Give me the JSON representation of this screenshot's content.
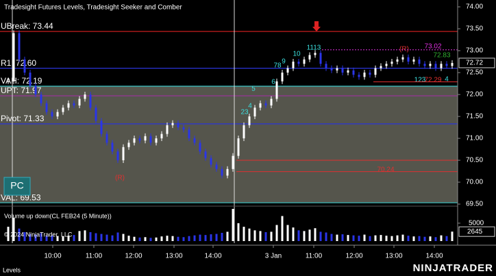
{
  "header": {
    "title": "Tradesight Futures Levels, Tradesight Seeker and Comber"
  },
  "chart_data": {
    "type": "candlestick",
    "closes": [
      72.3,
      73.4,
      72.8,
      72.5,
      72.2,
      72.0,
      71.8,
      71.6,
      71.5,
      71.6,
      71.7,
      71.8,
      71.75,
      71.9,
      72.0,
      71.7,
      71.4,
      71.1,
      70.9,
      70.7,
      70.5,
      70.8,
      70.9,
      71.0,
      70.95,
      71.05,
      70.9,
      71.0,
      71.1,
      71.3,
      71.35,
      71.25,
      71.2,
      71.0,
      70.9,
      70.7,
      70.55,
      70.4,
      70.3,
      70.15,
      70.3,
      70.6,
      71.0,
      71.3,
      71.5,
      71.7,
      71.8,
      71.75,
      71.9,
      72.3,
      72.5,
      72.6,
      72.75,
      72.7,
      72.8,
      72.9,
      72.95,
      72.7,
      72.6,
      72.55,
      72.6,
      72.5,
      72.55,
      72.45,
      72.4,
      72.5,
      72.45,
      72.6,
      72.65,
      72.7,
      72.75,
      72.8,
      72.85,
      72.75,
      72.8,
      72.7,
      72.65,
      72.7,
      72.6,
      72.7,
      72.65,
      72.72
    ],
    "ylim": [
      69.5,
      74
    ],
    "yticks": [
      {
        "value": 74,
        "label": "74.00"
      },
      {
        "value": 73.5,
        "label": "73.50"
      },
      {
        "value": 73,
        "label": "73.00"
      },
      {
        "value": 72.5,
        "label": "72.50"
      },
      {
        "value": 72,
        "label": "72.00"
      },
      {
        "value": 71.5,
        "label": "71.50"
      },
      {
        "value": 71,
        "label": "71.00"
      },
      {
        "value": 70.5,
        "label": "70.50"
      },
      {
        "value": 70,
        "label": "70.00"
      },
      {
        "value": 69.5,
        "label": "69.50"
      }
    ],
    "last_price": 72.72,
    "levels": [
      {
        "label": "UBreak: 73.44",
        "value": 73.44,
        "color": "#c81e1e"
      },
      {
        "label": "R1: 72.60",
        "value": 72.6,
        "color": "#2a35d8"
      },
      {
        "label": "VAH: 72.19",
        "value": 72.19,
        "color": "#3cc8c8"
      },
      {
        "label": "UPT: 71.97",
        "value": 71.97,
        "color": "#a030a0"
      },
      {
        "label": "Pivot: 71.33",
        "value": 71.33,
        "color": "#2a35d8"
      },
      {
        "label": "VAL: 69.53",
        "value": 69.53,
        "color": "#3cc8c8"
      }
    ],
    "x_labels": [
      "10:00",
      "11:00",
      "12:00",
      "13:00",
      "14:00",
      "3 Jan",
      "11:00",
      "12:00",
      "13:00",
      "14:00"
    ],
    "annotations": [
      "(R)",
      "(R)",
      "73.02",
      "72.83",
      "72.29",
      "70.24",
      "5",
      "6",
      "78",
      "9",
      "10",
      "1113",
      "23",
      "4",
      "123",
      "4"
    ],
    "volume": {
      "name": "Volume up down(CL FEB24 (5 Minute))",
      "values": [
        4000,
        6500,
        3500,
        2500,
        2000,
        1800,
        2200,
        1500,
        1600,
        1400,
        1300,
        1500,
        1700,
        2800,
        3000,
        2500,
        2200,
        2000,
        1800,
        1600,
        2400,
        2000,
        1500,
        1200,
        1000,
        1100,
        900,
        1000,
        1300,
        1500,
        1400,
        1200,
        1100,
        1400,
        1600,
        1800,
        1700,
        1900,
        2000,
        2300,
        2600,
        9000,
        5000,
        4000,
        3500,
        3000,
        2800,
        2500,
        2600,
        4500,
        7000,
        4500,
        3800,
        3000,
        2800,
        3200,
        3600,
        2600,
        2400,
        2000,
        1800,
        1900,
        1700,
        1600,
        1500,
        1800,
        1400,
        1600,
        1700,
        1500,
        1400,
        1600,
        1800,
        1500,
        1300,
        1400,
        1200,
        1300,
        1100,
        1600,
        1400,
        2645
      ],
      "ylim": [
        0,
        9000
      ],
      "yticks": [
        5000
      ],
      "last": 2645
    }
  },
  "pc_button": "PC",
  "copyright": "© 2024 NinjaTrader, LLC",
  "footer": {
    "tab": "Levels",
    "logo": "NINJATRADER"
  }
}
